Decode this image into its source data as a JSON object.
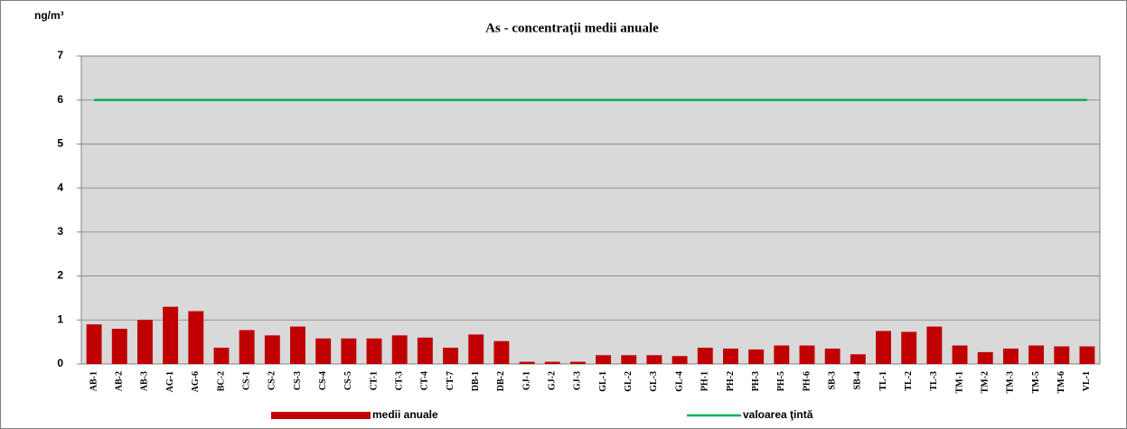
{
  "chart_data": {
    "type": "bar",
    "title": "As - concentraţii  medii  anuale",
    "y_label": "ng/m³",
    "categories": [
      "AB-1",
      "AB-2",
      "AB-3",
      "AG-1",
      "AG-6",
      "BC-2",
      "CS-1",
      "CS-2",
      "CS-3",
      "CS-4",
      "CS-5",
      "CT-1",
      "CT-3",
      "CT-4",
      "CT-7",
      "DB-1",
      "DB-2",
      "GJ-1",
      "GJ-2",
      "GJ-3",
      "GL-1",
      "GL-2",
      "GL-3",
      "GL-4",
      "PH-1",
      "PH-2",
      "PH-3",
      "PH-5",
      "PH-6",
      "SB-3",
      "SB-4",
      "TL-1",
      "TL-2",
      "TL-3",
      "TM-1",
      "TM-2",
      "TM-3",
      "TM-5",
      "TM-6",
      "VL-1"
    ],
    "series": [
      {
        "name": "medii anuale",
        "type": "bar",
        "color": "#c00000",
        "values": [
          0.9,
          0.8,
          1.0,
          1.3,
          1.2,
          0.37,
          0.77,
          0.65,
          0.85,
          0.58,
          0.58,
          0.58,
          0.65,
          0.6,
          0.37,
          0.67,
          0.52,
          0.05,
          0.05,
          0.05,
          0.2,
          0.2,
          0.2,
          0.18,
          0.37,
          0.35,
          0.33,
          0.42,
          0.42,
          0.35,
          0.22,
          0.75,
          0.73,
          0.85,
          0.42,
          0.27,
          0.35,
          0.42,
          0.4,
          0.4
        ]
      },
      {
        "name": "valoarea ţintă",
        "type": "line",
        "color": "#00b050",
        "values": [
          6,
          6,
          6,
          6,
          6,
          6,
          6,
          6,
          6,
          6,
          6,
          6,
          6,
          6,
          6,
          6,
          6,
          6,
          6,
          6,
          6,
          6,
          6,
          6,
          6,
          6,
          6,
          6,
          6,
          6,
          6,
          6,
          6,
          6,
          6,
          6,
          6,
          6,
          6,
          6
        ]
      }
    ],
    "ylim": [
      0,
      7
    ],
    "yticks": [
      0,
      1,
      2,
      3,
      4,
      5,
      6,
      7
    ],
    "grid": true
  }
}
